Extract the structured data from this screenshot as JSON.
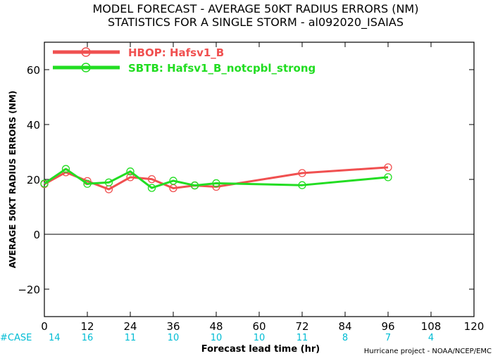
{
  "title_line1": "MODEL FORECAST - AVERAGE 50KT RADIUS ERRORS (NM)",
  "title_line2": "STATISTICS FOR A SINGLE STORM - al092020_ISAIAS",
  "credit": "Hurricane project - NOAA/NCEP/EMC",
  "case_label": "#CASE",
  "cases": [
    {
      "x": 0,
      "n": "14"
    },
    {
      "x": 12,
      "n": "16"
    },
    {
      "x": 24,
      "n": "11"
    },
    {
      "x": 36,
      "n": "10"
    },
    {
      "x": 48,
      "n": "10"
    },
    {
      "x": 60,
      "n": "10"
    },
    {
      "x": 72,
      "n": "11"
    },
    {
      "x": 84,
      "n": "8"
    },
    {
      "x": 96,
      "n": "7"
    },
    {
      "x": 108,
      "n": "4"
    }
  ],
  "chart_data": {
    "type": "line",
    "xlabel": "Forecast lead time (hr)",
    "ylabel": "AVERAGE 50KT RADIUS ERRORS (NM)",
    "xlim": [
      0,
      120
    ],
    "ylim": [
      -30,
      70
    ],
    "xticks": [
      0,
      12,
      24,
      36,
      48,
      60,
      72,
      84,
      96,
      108,
      120
    ],
    "yticks": [
      -20,
      0,
      20,
      40,
      60
    ],
    "zero_line": true,
    "legend_placement": "top-left",
    "series": [
      {
        "name": "HBOP: Hafsv1_B",
        "color": "#f05050",
        "x": [
          0,
          6,
          12,
          18,
          24,
          30,
          36,
          42,
          48,
          72,
          96
        ],
        "y": [
          18.3,
          22.6,
          19.4,
          16.4,
          20.8,
          20.1,
          16.8,
          17.8,
          17.3,
          22.3,
          24.4
        ]
      },
      {
        "name": "SBTB: Hafsv1_B_notcpbl_strong",
        "color": "#22dd22",
        "x": [
          0,
          6,
          12,
          18,
          24,
          30,
          36,
          42,
          48,
          72,
          96
        ],
        "y": [
          18.5,
          23.8,
          18.4,
          18.9,
          22.9,
          16.9,
          19.5,
          17.8,
          18.6,
          17.9,
          20.8
        ]
      }
    ]
  }
}
